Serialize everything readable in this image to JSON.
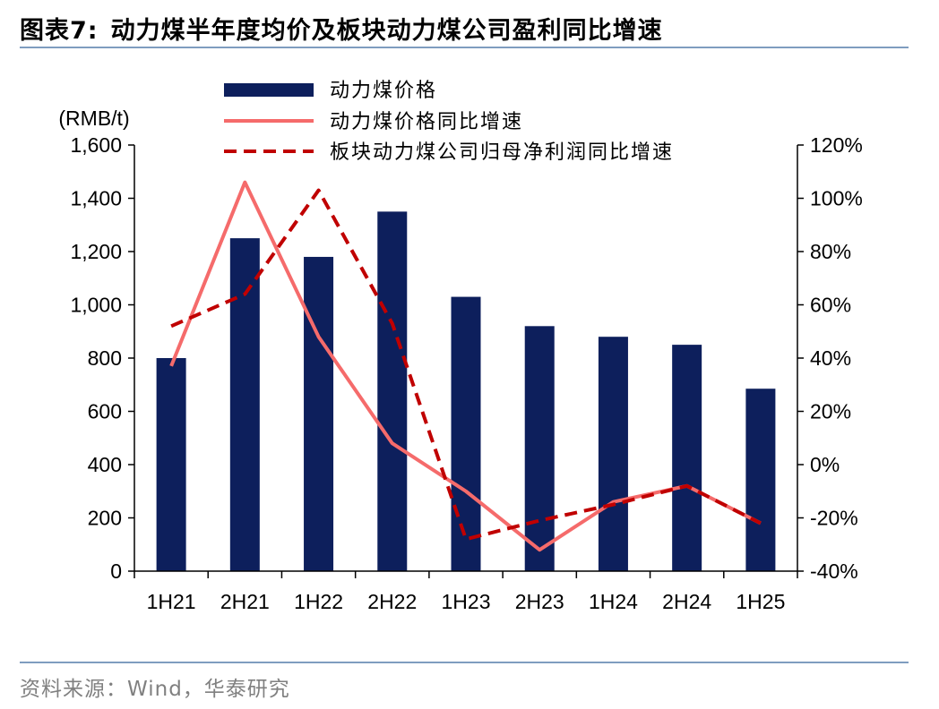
{
  "header": {
    "figure_label": "图表7:",
    "title_text": "动力煤半年度均价及板块动力煤公司盈利同比增速"
  },
  "footer": {
    "source_text": "资料来源：Wind，华泰研究"
  },
  "colors": {
    "bar": "#0d1f5c",
    "price_yoy_line": "#f56b6b",
    "profit_yoy_line": "#c00000",
    "rule": "#7f9dbf"
  },
  "chart_data": {
    "type": "bar",
    "categories": [
      "1H21",
      "2H21",
      "1H22",
      "2H22",
      "1H23",
      "2H23",
      "1H24",
      "2H24",
      "1H25"
    ],
    "left_axis": {
      "unit_label": "(RMB/t)",
      "range": [
        0,
        1600
      ],
      "ticks": [
        "0",
        "200",
        "400",
        "600",
        "800",
        "1,000",
        "1,200",
        "1,400",
        "1,600"
      ]
    },
    "right_axis": {
      "range": [
        -40,
        120
      ],
      "ticks": [
        "-40%",
        "-20%",
        "0%",
        "20%",
        "40%",
        "60%",
        "80%",
        "100%",
        "120%"
      ]
    },
    "series": [
      {
        "name": "动力煤价格",
        "type": "bar",
        "axis": "left",
        "values": [
          800,
          1250,
          1180,
          1350,
          1030,
          920,
          880,
          850,
          685
        ]
      },
      {
        "name": "动力煤价格同比增速",
        "type": "line",
        "style": "solid",
        "axis": "right",
        "values": [
          37,
          106,
          48,
          8,
          -10,
          -32,
          -14,
          -8,
          -22
        ]
      },
      {
        "name": "板块动力煤公司归母净利润同比增速",
        "type": "line",
        "style": "dashed",
        "axis": "right",
        "values": [
          52,
          64,
          103,
          53,
          -28,
          -21,
          -15,
          -8,
          -22
        ]
      }
    ],
    "legend_position": "top-left",
    "grid": false
  }
}
